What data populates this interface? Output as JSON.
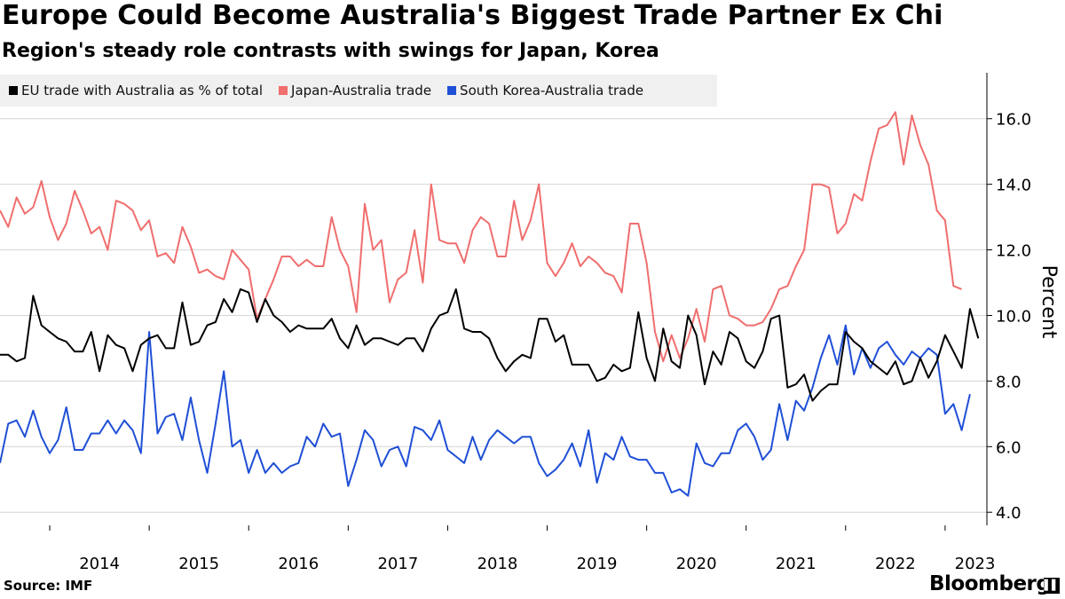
{
  "chart_data": {
    "type": "line",
    "title": "Europe Could Become Australia's Biggest Trade Partner Ex Chi",
    "subtitle": "Region's steady role contrasts with swings for Japan, Korea",
    "ylabel": "Percent",
    "ylim": [
      3.6,
      17.4
    ],
    "yticks": [
      "4.0",
      "6.0",
      "8.0",
      "10.0",
      "12.0",
      "14.0",
      "16.0"
    ],
    "ytick_values": [
      4,
      6,
      8,
      10,
      12,
      14,
      16
    ],
    "xlim": [
      2013.5,
      2023.42
    ],
    "x_start": 2013.5,
    "x_step": 0.083333,
    "xtick_labels": [
      "2014",
      "2015",
      "2016",
      "2017",
      "2018",
      "2019",
      "2020",
      "2021",
      "2022",
      "2023"
    ],
    "xtick_label_values": [
      2014.5,
      2015.5,
      2016.5,
      2017.5,
      2018.5,
      2019.5,
      2020.5,
      2021.5,
      2022.5,
      2023.3
    ],
    "xtick_marks": [
      2014,
      2015,
      2016,
      2017,
      2018,
      2019,
      2020,
      2021,
      2022,
      2023
    ],
    "series": [
      {
        "name": "EU trade with Australia as % of total",
        "color": "#000000",
        "values": [
          8.8,
          8.8,
          8.6,
          8.7,
          10.6,
          9.7,
          9.5,
          9.3,
          9.2,
          8.9,
          8.9,
          9.5,
          8.3,
          9.4,
          9.1,
          9.0,
          8.3,
          9.1,
          9.3,
          9.4,
          9.0,
          9.0,
          10.4,
          9.1,
          9.2,
          9.7,
          9.8,
          10.5,
          10.1,
          10.8,
          10.7,
          9.8,
          10.5,
          10.0,
          9.8,
          9.5,
          9.7,
          9.6,
          9.6,
          9.6,
          9.9,
          9.3,
          9.0,
          9.7,
          9.1,
          9.3,
          9.3,
          9.2,
          9.1,
          9.3,
          9.3,
          8.9,
          9.6,
          10.0,
          10.1,
          10.8,
          9.6,
          9.5,
          9.5,
          9.3,
          8.7,
          8.3,
          8.6,
          8.8,
          8.7,
          9.9,
          9.9,
          9.2,
          9.4,
          8.5,
          8.5,
          8.5,
          8.0,
          8.1,
          8.5,
          8.3,
          8.4,
          10.1,
          8.7,
          8.0,
          9.6,
          8.6,
          8.4,
          10.0,
          9.4,
          7.9,
          8.9,
          8.5,
          9.5,
          9.3,
          8.6,
          8.4,
          8.9,
          9.9,
          10.0,
          7.8,
          7.9,
          8.2,
          7.4,
          7.7,
          7.9,
          7.9,
          9.5,
          9.2,
          9.0,
          8.6,
          8.4,
          8.2,
          8.6,
          7.9,
          8.0,
          8.7,
          8.1,
          8.6,
          9.4,
          8.9,
          8.4,
          10.2,
          9.3
        ]
      },
      {
        "name": "Japan-Australia trade",
        "color": "#f06e6e",
        "values": [
          13.2,
          12.7,
          13.6,
          13.1,
          13.3,
          14.1,
          13.0,
          12.3,
          12.8,
          13.8,
          13.2,
          12.5,
          12.7,
          12.0,
          13.5,
          13.4,
          13.2,
          12.6,
          12.9,
          11.8,
          11.9,
          11.6,
          12.7,
          12.1,
          11.3,
          11.4,
          11.2,
          11.1,
          12.0,
          11.7,
          11.4,
          9.9,
          10.5,
          11.1,
          11.8,
          11.8,
          11.5,
          11.7,
          11.5,
          11.5,
          13.0,
          12.0,
          11.5,
          10.1,
          13.4,
          12.0,
          12.3,
          10.4,
          11.1,
          11.3,
          12.6,
          11.0,
          14.0,
          12.3,
          12.2,
          12.2,
          11.6,
          12.6,
          13.0,
          12.8,
          11.8,
          11.8,
          13.5,
          12.3,
          12.9,
          14.0,
          11.6,
          11.2,
          11.6,
          12.2,
          11.5,
          11.8,
          11.6,
          11.3,
          11.2,
          10.7,
          12.8,
          12.8,
          11.6,
          9.5,
          8.6,
          9.4,
          8.7,
          9.3,
          10.2,
          9.2,
          10.8,
          10.9,
          10.0,
          9.9,
          9.7,
          9.7,
          9.8,
          10.2,
          10.8,
          10.9,
          11.5,
          12.0,
          14.0,
          14.0,
          13.9,
          12.5,
          12.8,
          13.7,
          13.5,
          14.7,
          15.7,
          15.8,
          16.2,
          14.6,
          16.1,
          15.2,
          14.6,
          13.2,
          12.9,
          10.9,
          10.8
        ]
      },
      {
        "name": "South Korea-Australia trade",
        "color": "#1f4fd6",
        "values": [
          5.5,
          6.7,
          6.8,
          6.3,
          7.1,
          6.3,
          5.8,
          6.2,
          7.2,
          5.9,
          5.9,
          6.4,
          6.4,
          6.8,
          6.4,
          6.8,
          6.5,
          5.8,
          9.5,
          6.4,
          6.9,
          7.0,
          6.2,
          7.5,
          6.2,
          5.2,
          6.7,
          8.3,
          6.0,
          6.2,
          5.2,
          5.9,
          5.2,
          5.5,
          5.2,
          5.4,
          5.5,
          6.3,
          6.0,
          6.7,
          6.3,
          6.4,
          4.8,
          5.6,
          6.5,
          6.2,
          5.4,
          5.9,
          6.0,
          5.4,
          6.6,
          6.5,
          6.2,
          6.8,
          5.9,
          5.7,
          5.5,
          6.3,
          5.6,
          6.2,
          6.5,
          6.3,
          6.1,
          6.3,
          6.3,
          5.5,
          5.1,
          5.3,
          5.6,
          6.1,
          5.4,
          6.5,
          4.9,
          5.8,
          5.6,
          6.3,
          5.7,
          5.6,
          5.6,
          5.2,
          5.2,
          4.6,
          4.7,
          4.5,
          6.1,
          5.5,
          5.4,
          5.8,
          5.8,
          6.5,
          6.7,
          6.3,
          5.6,
          5.9,
          7.3,
          6.2,
          7.4,
          7.1,
          7.8,
          8.7,
          9.4,
          8.5,
          9.7,
          8.2,
          9.0,
          8.4,
          9.0,
          9.2,
          8.8,
          8.5,
          8.9,
          8.7,
          9.0,
          8.8,
          7.0,
          7.3,
          6.5,
          7.6
        ]
      }
    ]
  },
  "source": "Source: IMF",
  "brand": "Bloomberg",
  "brand_mark": "▌▌",
  "colors": {
    "grid": "#d4d4d4",
    "axis": "#000000",
    "legend_bg": "#f0f0f0"
  }
}
